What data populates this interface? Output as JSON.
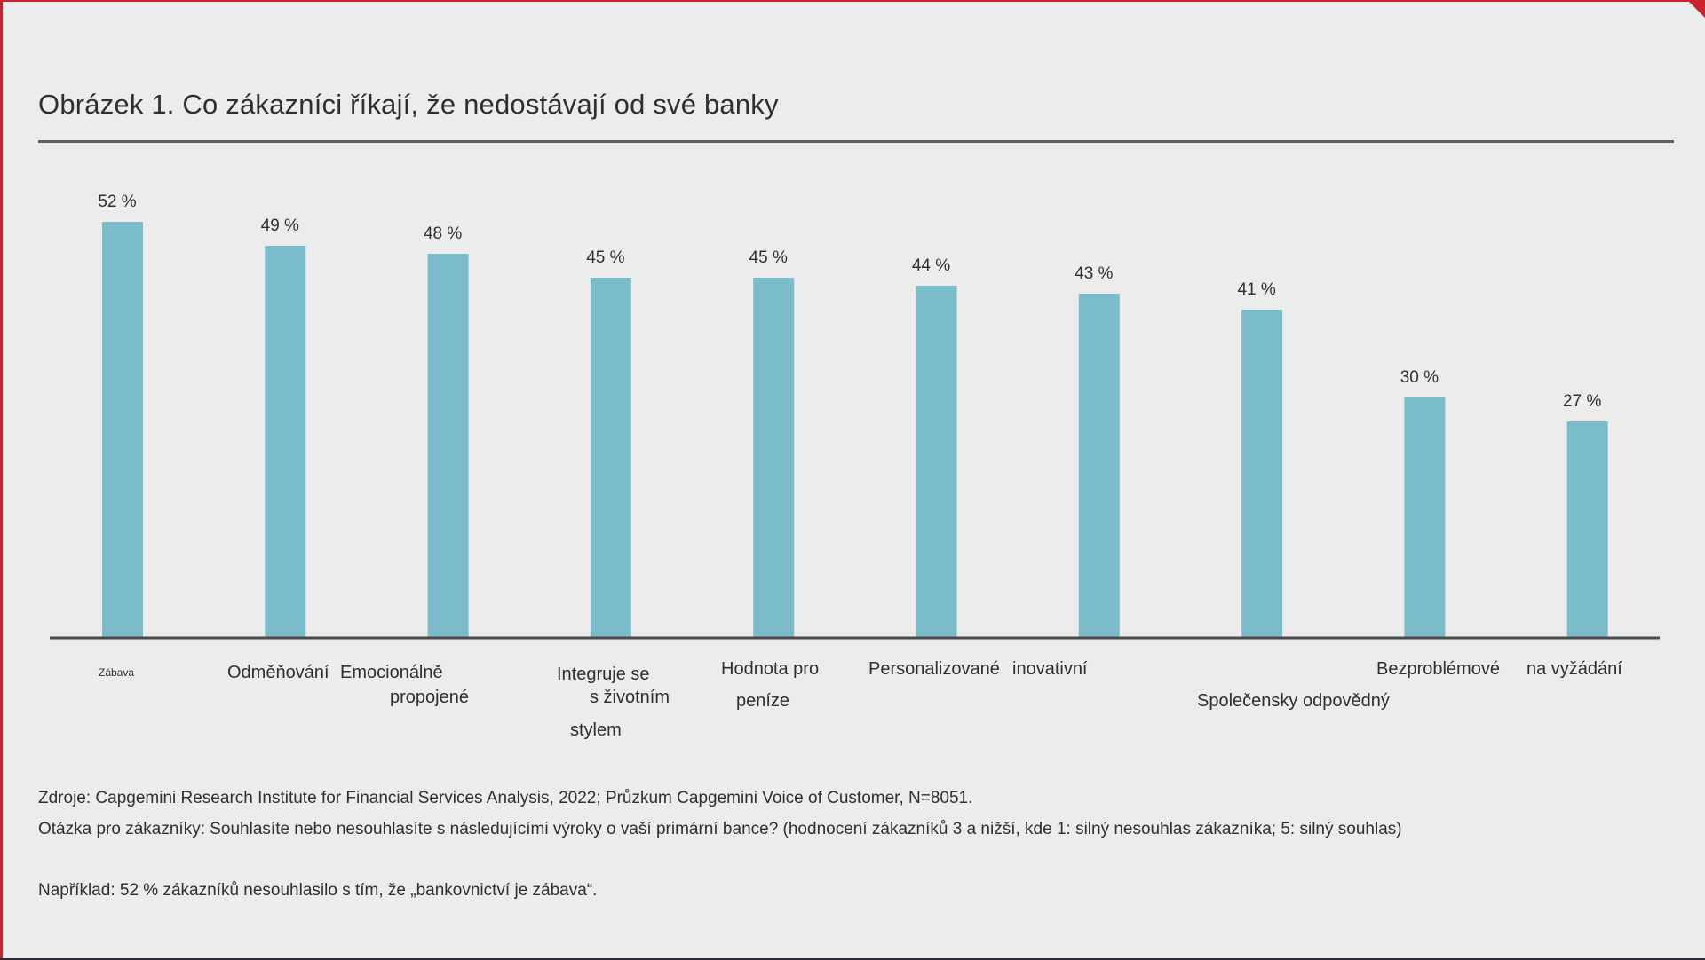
{
  "figure": {
    "title": "Obrázek 1. Co zákazníci říkají, že nedostávají od své banky"
  },
  "chart_data": {
    "type": "bar",
    "categories": [
      "Zábava",
      "Odměňování",
      "Emocionálně propojené",
      "Integruje se s životním stylem",
      "Hodnota pro peníze",
      "Personalizované",
      "inovativní",
      "Společensky odpovědný",
      "Bezproblémové",
      "na vyžádání"
    ],
    "values": [
      52,
      49,
      48,
      45,
      45,
      44,
      43,
      41,
      30,
      27
    ],
    "value_labels": [
      "52 %",
      "49 %",
      "48 %",
      "45 %",
      "45 %",
      "44 %",
      "43 %",
      "41 %",
      "30 %",
      "27 %"
    ],
    "ylim": [
      0,
      52
    ],
    "bar_color": "#7bbccb",
    "axis_color": "#4a4a4a",
    "grid": false,
    "legend": "none"
  },
  "axis_labels": {
    "zabava": "Zábava",
    "odmenovani": "Odměňování",
    "emocionalne_1": "Emocionálně",
    "emocionalne_2": "propojené",
    "integruje_1": "Integruje se",
    "integruje_2": "s životním",
    "integruje_3": "stylem",
    "hodnota_1": "Hodnota pro",
    "hodnota_2": "peníze",
    "personalizovane": "Personalizované",
    "inovativni": "inovativní",
    "spolecensky": "Společensky odpovědný",
    "bezproblemove": "Bezproblémové",
    "na_vyzadani": "na vyžádání"
  },
  "notes": {
    "sources": "Zdroje: Capgemini Research Institute for Financial Services Analysis, 2022; Průzkum Capgemini Voice of Customer, N=8051.",
    "question": "Otázka pro zákazníky: Souhlasíte nebo nesouhlasíte s následujícími výroky o vaší primární bance? (hodnocení zákazníků 3 a nižší, kde 1: silný nesouhlas zákazníka; 5: silný souhlas)",
    "example": "Například: 52 % zákazníků nesouhlasilo s tím, že „bankovnictví je zábava“."
  }
}
